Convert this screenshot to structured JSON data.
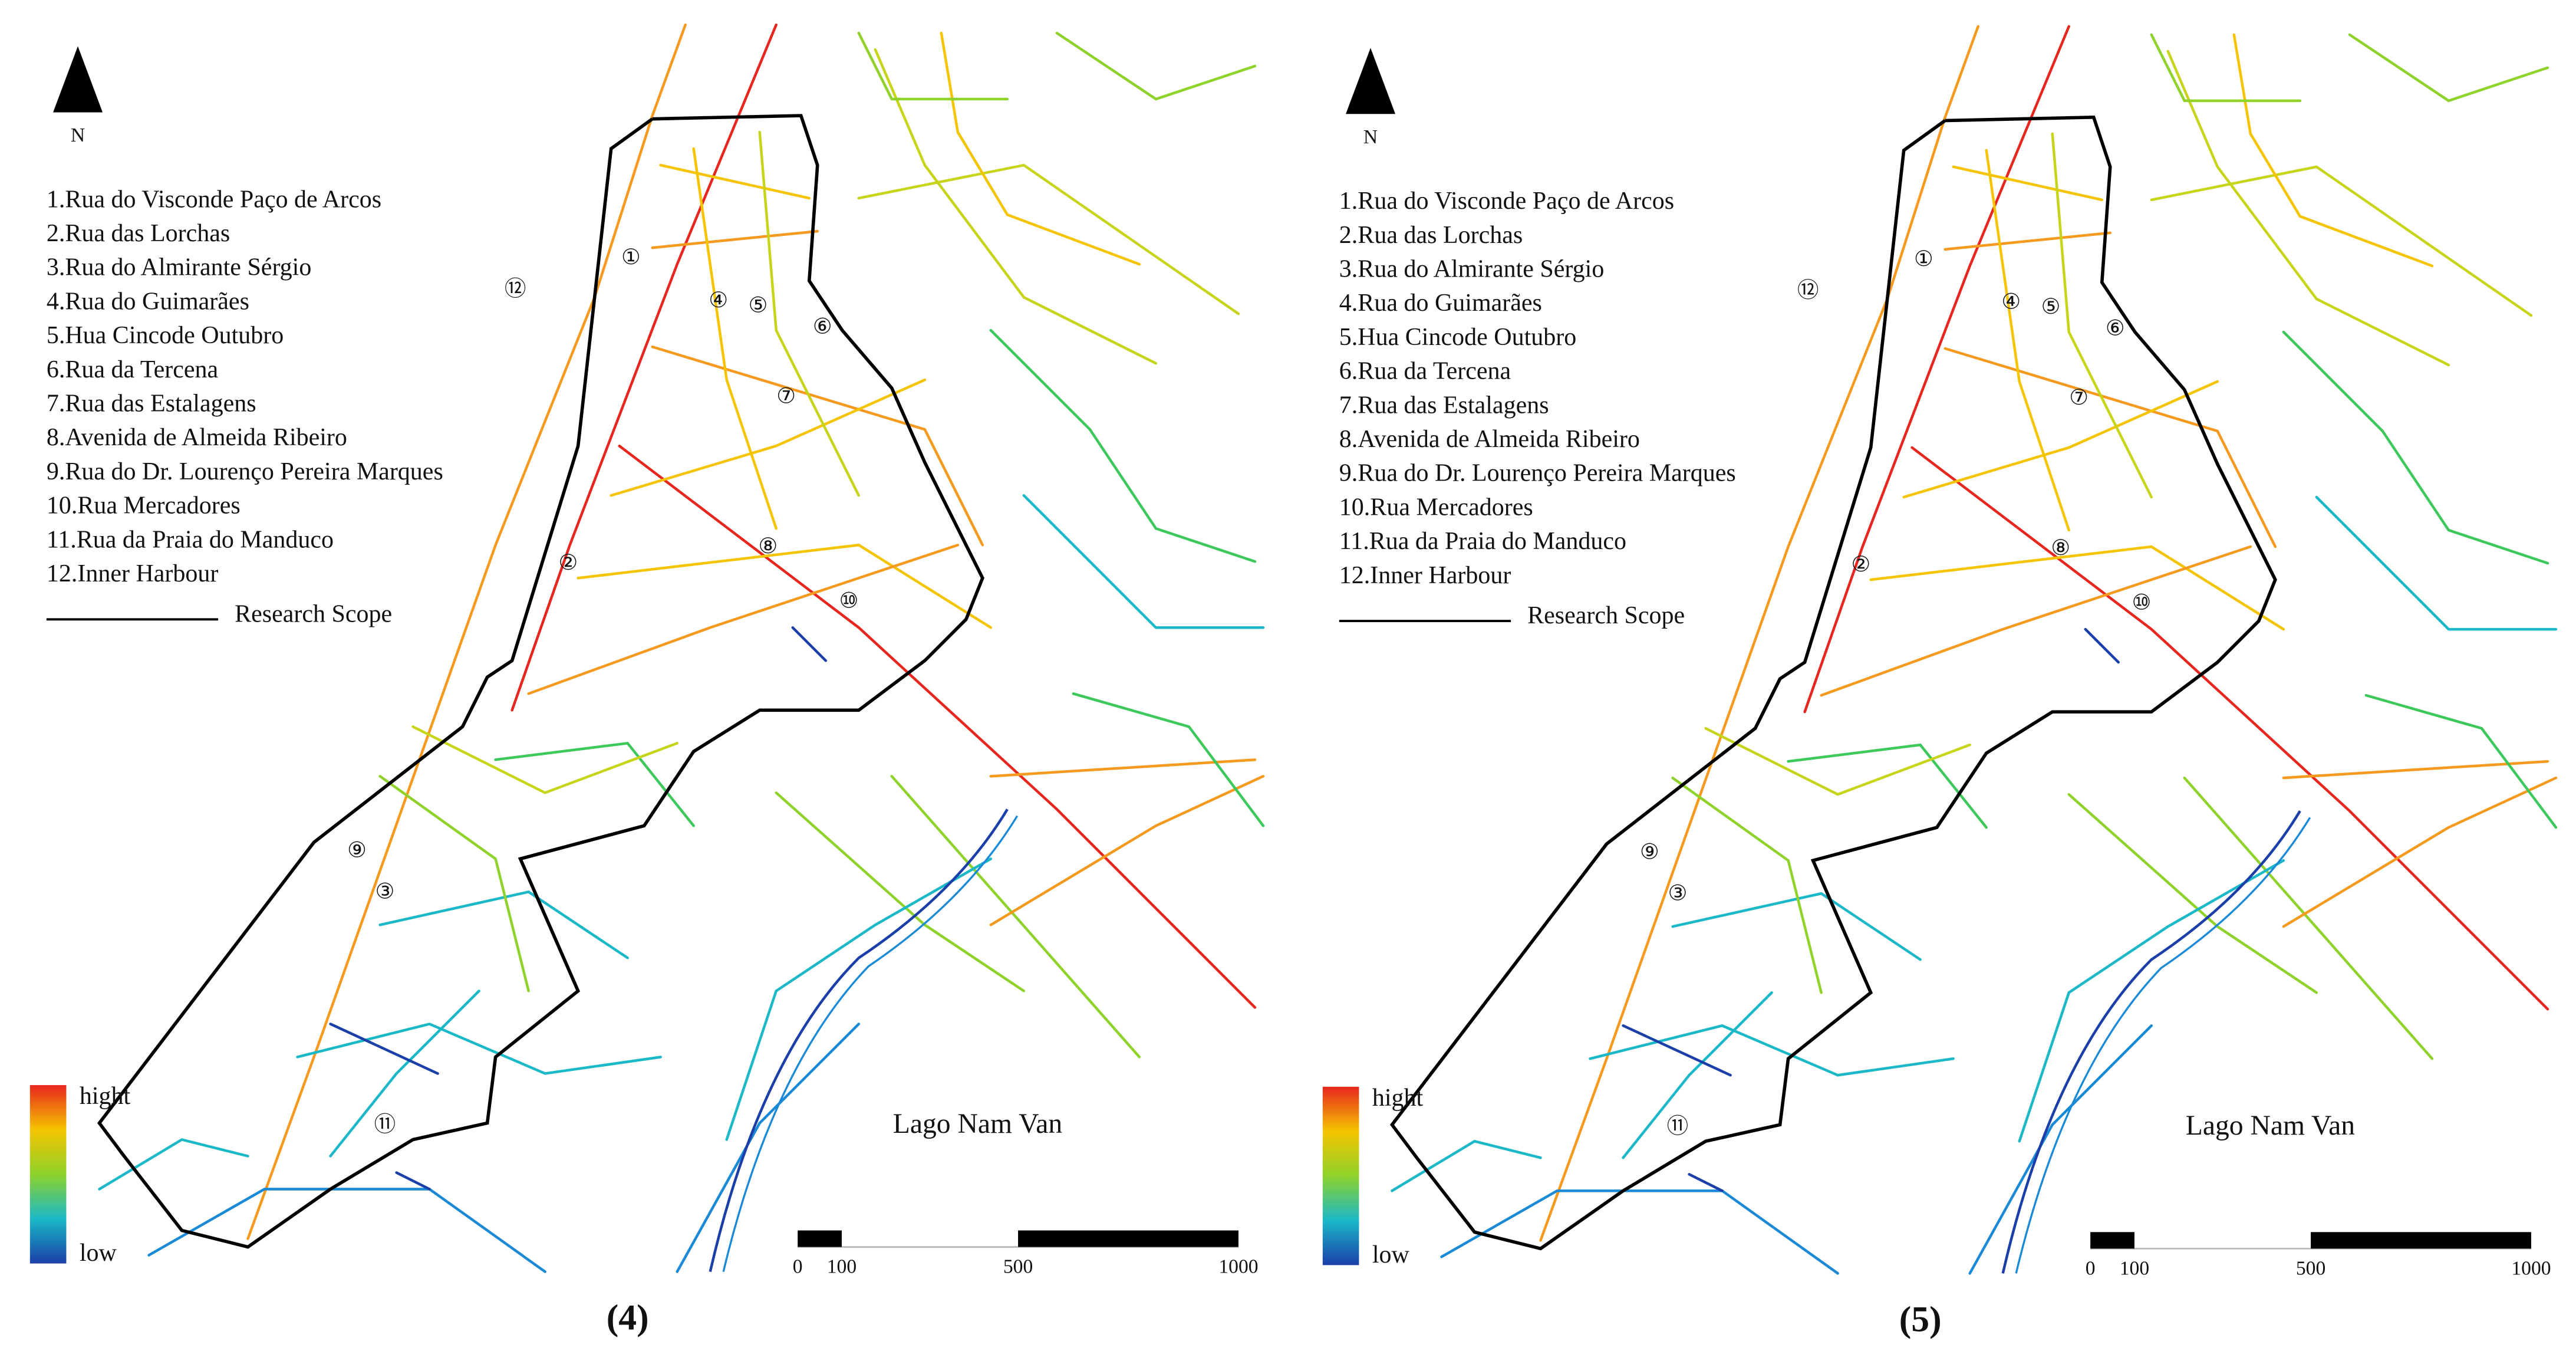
{
  "panels": [
    {
      "label": "(4)",
      "north": "N",
      "legend": [
        "1.Rua do Visconde Paço de Arcos",
        "2.Rua das Lorchas",
        "3.Rua do Almirante Sérgio",
        "4.Rua do Guimarães",
        "5.Hua Cincode Outubro",
        "6.Rua da Tercena",
        "7.Rua das Estalagens",
        "8.Avenida de Almeida Ribeiro",
        "9.Rua do Dr. Lourenço Pereira Marques",
        "10.Rua Mercadores",
        "11.Rua da Praia do Manduco",
        "12.Inner Harbour"
      ],
      "scope_label": "Research Scope",
      "colorbar": {
        "high": "hight",
        "low": "low"
      },
      "water_label": "Lago Nam Van",
      "scale": [
        0,
        100,
        500,
        1000
      ],
      "markers": [
        "①",
        "②",
        "③",
        "④",
        "⑤",
        "⑥",
        "⑦",
        "⑧",
        "⑨",
        "⑩",
        "⑪",
        "⑫"
      ]
    },
    {
      "label": "(5)",
      "north": "N",
      "legend": [
        "1.Rua do Visconde Paço de Arcos",
        "2.Rua das Lorchas",
        "3.Rua do Almirante Sérgio",
        "4.Rua do Guimarães",
        "5.Hua Cincode Outubro",
        "6.Rua da Tercena",
        "7.Rua das Estalagens",
        "8.Avenida de Almeida Ribeiro",
        "9.Rua do Dr. Lourenço Pereira Marques",
        "10.Rua Mercadores",
        "11.Rua da Praia do Manduco",
        "12.Inner Harbour"
      ],
      "scope_label": "Research Scope",
      "colorbar": {
        "high": "hight",
        "low": "low"
      },
      "water_label": "Lago Nam Van",
      "scale": [
        0,
        100,
        500,
        1000
      ],
      "markers": [
        "①",
        "②",
        "③",
        "④",
        "⑤",
        "⑥",
        "⑦",
        "⑧",
        "⑨",
        "⑩",
        "⑪",
        "⑫"
      ]
    }
  ]
}
